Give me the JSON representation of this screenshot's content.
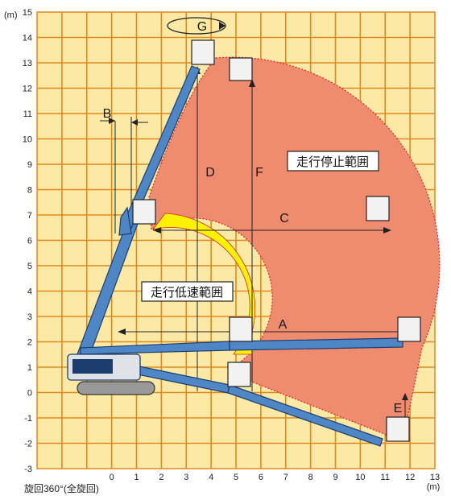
{
  "y_unit": "(m)",
  "x_unit": "(m)",
  "x_ticks": [
    "0",
    "1",
    "2",
    "3",
    "4",
    "5",
    "6",
    "7",
    "8",
    "9",
    "10",
    "11",
    "12",
    "13"
  ],
  "y_ticks": [
    "15",
    "14",
    "13",
    "12",
    "11",
    "10",
    "9",
    "8",
    "7",
    "6",
    "5",
    "4",
    "3",
    "2",
    "1",
    "0",
    "-1",
    "-2",
    "-3"
  ],
  "rotation_note": "旋回360°(全旋回)",
  "zones": {
    "stop": "走行停止範囲",
    "slow": "走行低速範囲"
  },
  "dimensions": {
    "A": "A",
    "B": "B",
    "C": "C",
    "D": "D",
    "E": "E",
    "F": "F",
    "G": "G"
  },
  "colors": {
    "grid_bg": "#fbe9a5",
    "grid_line": "#e0891f",
    "stop_zone": "#ef8b6f",
    "slow_zone": "#fff200",
    "boom": "#4f86c6",
    "boundary": "#d8242a"
  }
}
